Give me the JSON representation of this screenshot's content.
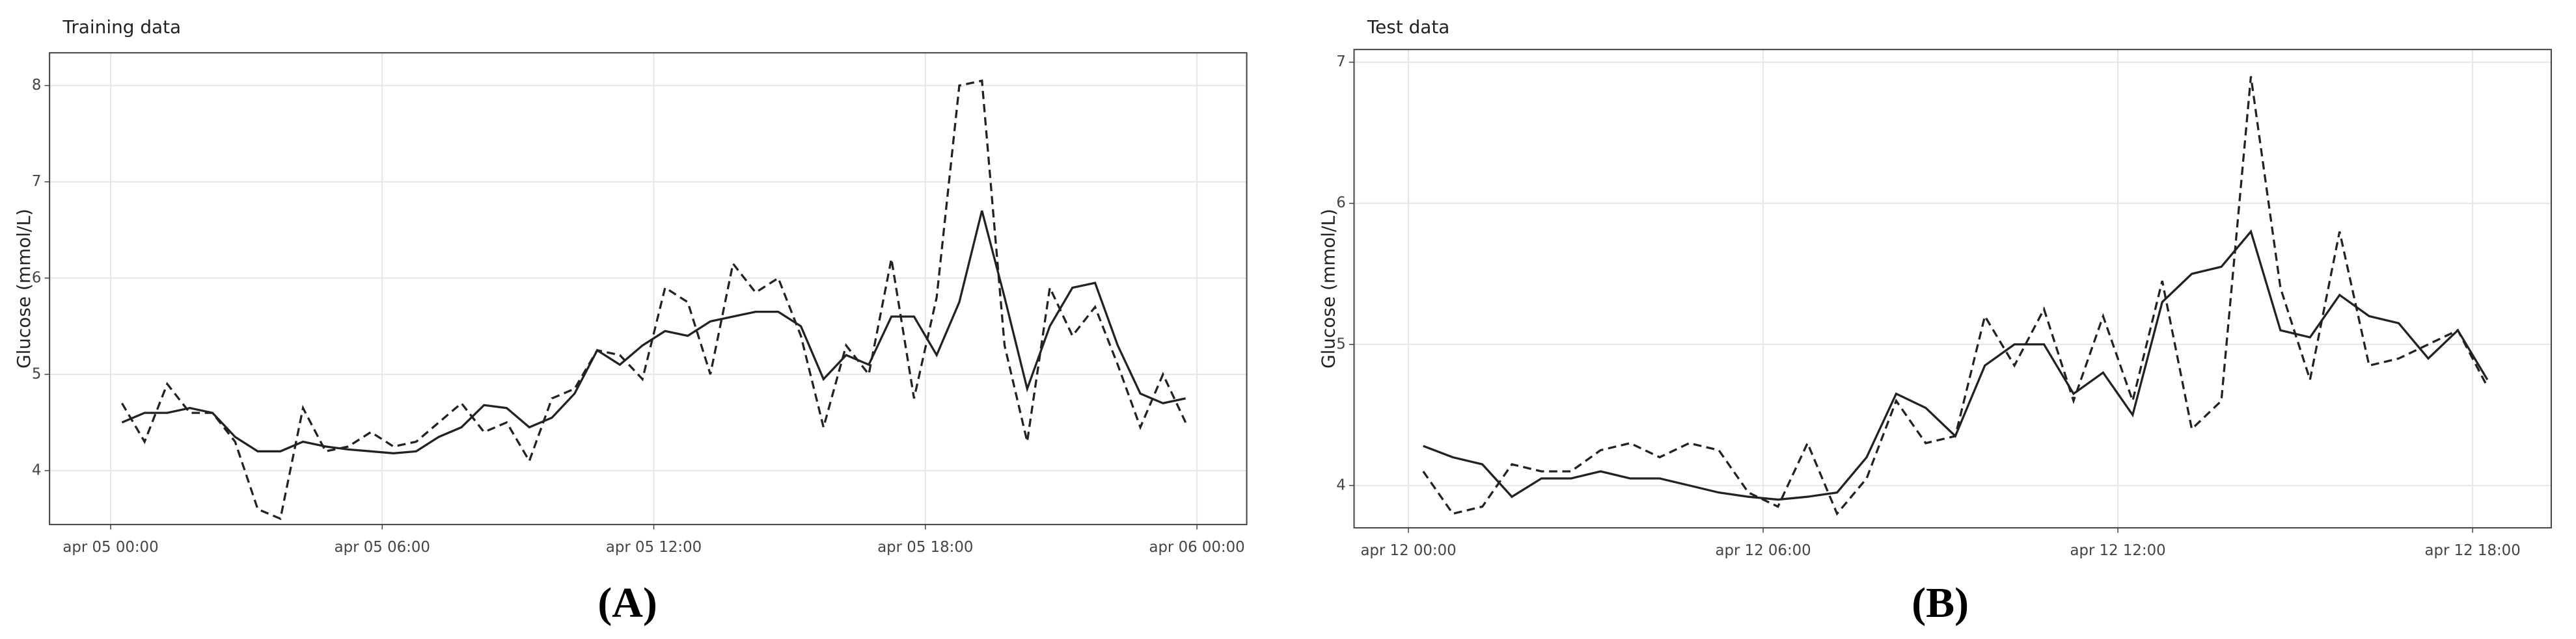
{
  "chart_data": [
    {
      "type": "line",
      "title": "Training data",
      "ylabel": "Glucose (mmol/L)",
      "caption": "(A)",
      "x": [
        0.25,
        0.75,
        1.25,
        1.75,
        2.25,
        2.75,
        3.25,
        3.75,
        4.25,
        4.75,
        5.25,
        5.75,
        6.25,
        6.75,
        7.25,
        7.75,
        8.25,
        8.75,
        9.25,
        9.75,
        10.25,
        10.75,
        11.25,
        11.75,
        12.25,
        12.75,
        13.25,
        13.75,
        14.25,
        14.75,
        15.25,
        15.75,
        16.25,
        16.75,
        17.25,
        17.75,
        18.25,
        18.75,
        19.25,
        19.75,
        20.25,
        20.75,
        21.25,
        21.75,
        22.25,
        22.75,
        23.25,
        23.75
      ],
      "series": [
        {
          "color": "#222222",
          "dash": false,
          "values": [
            4.5,
            4.6,
            4.6,
            4.65,
            4.6,
            4.35,
            4.2,
            4.2,
            4.3,
            4.25,
            4.22,
            4.2,
            4.18,
            4.2,
            4.35,
            4.45,
            4.68,
            4.65,
            4.45,
            4.55,
            4.8,
            5.25,
            5.1,
            5.3,
            5.45,
            5.4,
            5.55,
            5.6,
            5.65,
            5.65,
            5.5,
            4.95,
            5.2,
            5.1,
            5.6,
            5.6,
            5.2,
            5.75,
            6.7,
            5.8,
            4.85,
            5.5,
            5.9,
            5.95,
            5.3,
            4.8,
            4.7,
            4.75
          ]
        },
        {
          "color": "#222222",
          "dash": true,
          "values": [
            4.7,
            4.3,
            4.9,
            4.6,
            4.6,
            4.3,
            3.6,
            3.5,
            4.65,
            4.2,
            4.25,
            4.4,
            4.25,
            4.3,
            4.5,
            4.7,
            4.4,
            4.5,
            4.1,
            4.75,
            4.85,
            5.25,
            5.2,
            4.95,
            5.9,
            5.75,
            5.0,
            6.15,
            5.85,
            6.0,
            5.4,
            4.45,
            5.3,
            5.0,
            6.2,
            4.75,
            5.8,
            8.0,
            8.05,
            5.3,
            4.3,
            5.9,
            5.4,
            5.7,
            5.1,
            4.45,
            5.0,
            4.5
          ]
        }
      ],
      "xlim": [
        -1.35,
        25.1
      ],
      "ylim": [
        3.44,
        8.34
      ],
      "xticks": [
        {
          "value": 0,
          "label": "apr 05 00:00"
        },
        {
          "value": 6,
          "label": "apr 05 06:00"
        },
        {
          "value": 12,
          "label": "apr 05 12:00"
        },
        {
          "value": 18,
          "label": "apr 05 18:00"
        },
        {
          "value": 24,
          "label": "apr 06 00:00"
        }
      ],
      "yticks": [
        4,
        5,
        6,
        7,
        8
      ],
      "grid": true
    },
    {
      "type": "line",
      "title": "Test data",
      "ylabel": "Glucose (mmol/L)",
      "caption": "(B)",
      "x": [
        0.25,
        0.75,
        1.25,
        1.75,
        2.25,
        2.75,
        3.25,
        3.75,
        4.25,
        4.75,
        5.25,
        5.75,
        6.25,
        6.75,
        7.25,
        7.75,
        8.25,
        8.75,
        9.25,
        9.75,
        10.25,
        10.75,
        11.25,
        11.75,
        12.25,
        12.75,
        13.25,
        13.75,
        14.25,
        14.75,
        15.25,
        15.75,
        16.25,
        16.75,
        17.25,
        17.75,
        18.25
      ],
      "series": [
        {
          "color": "#222222",
          "dash": false,
          "values": [
            4.28,
            4.2,
            4.15,
            3.92,
            4.05,
            4.05,
            4.1,
            4.05,
            4.05,
            4.0,
            3.95,
            3.92,
            3.9,
            3.92,
            3.95,
            4.2,
            4.65,
            4.55,
            4.35,
            4.85,
            5.0,
            5.0,
            4.65,
            4.8,
            4.5,
            5.3,
            5.5,
            5.55,
            5.8,
            5.1,
            5.05,
            5.35,
            5.2,
            5.15,
            4.9,
            5.1,
            4.75
          ]
        },
        {
          "color": "#222222",
          "dash": true,
          "values": [
            4.1,
            3.8,
            3.85,
            4.15,
            4.1,
            4.1,
            4.25,
            4.3,
            4.2,
            4.3,
            4.25,
            3.95,
            3.85,
            4.3,
            3.8,
            4.05,
            4.6,
            4.3,
            4.35,
            5.2,
            4.85,
            5.25,
            4.6,
            5.2,
            4.6,
            5.45,
            4.4,
            4.6,
            6.9,
            5.4,
            4.75,
            5.8,
            4.85,
            4.9,
            5.0,
            5.1,
            4.7
          ]
        }
      ],
      "xlim": [
        -0.92,
        19.33
      ],
      "ylim": [
        3.7,
        7.09
      ],
      "xticks": [
        {
          "value": 0,
          "label": "apr 12 00:00"
        },
        {
          "value": 6,
          "label": "apr 12 06:00"
        },
        {
          "value": 12,
          "label": "apr 12 12:00"
        },
        {
          "value": 18,
          "label": "apr 12 18:00"
        }
      ],
      "yticks": [
        4,
        5,
        6,
        7
      ],
      "grid": true
    }
  ]
}
